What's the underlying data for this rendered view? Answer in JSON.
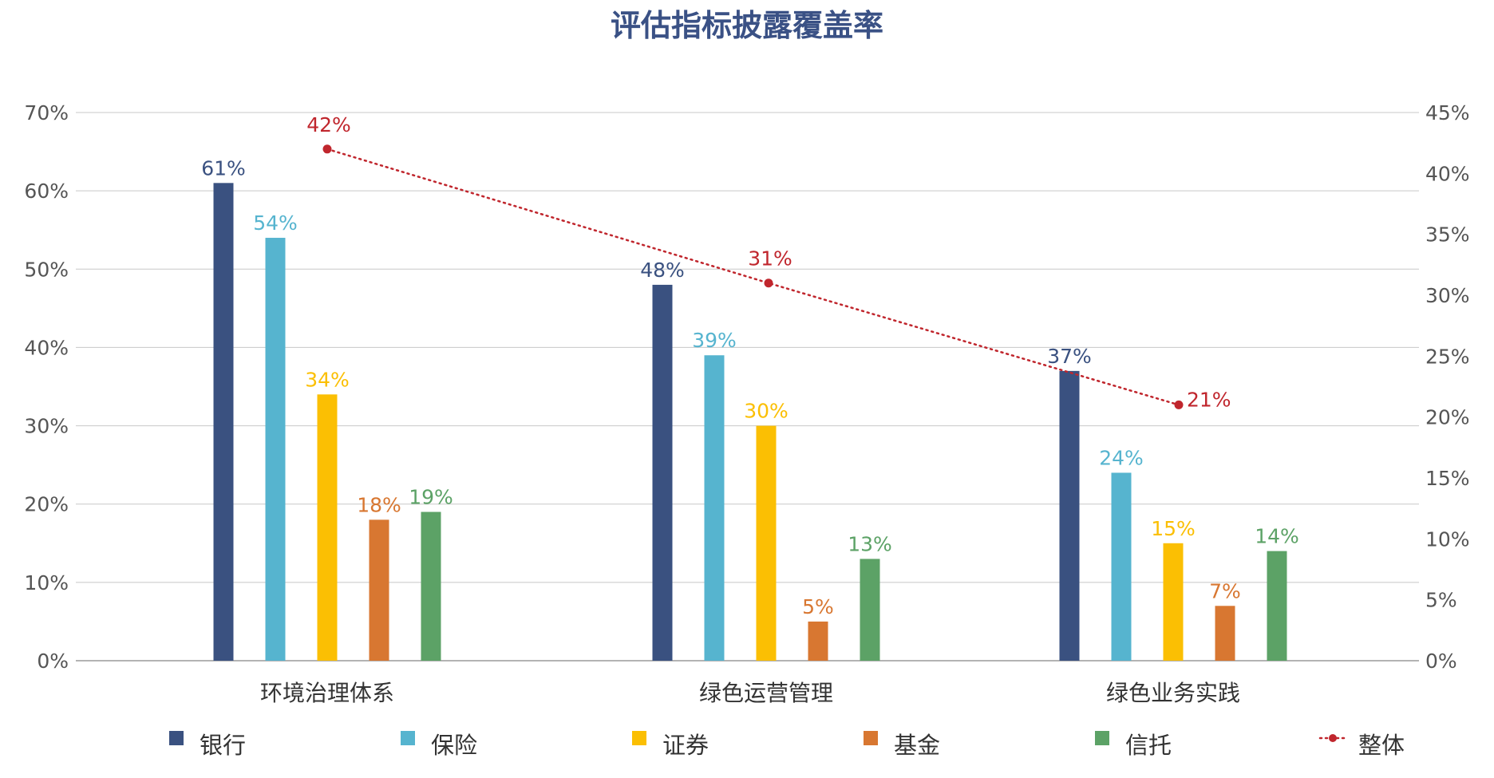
{
  "chart_data": {
    "type": "bar",
    "title": "评估指标披露覆盖率",
    "categories": [
      "环境治理体系",
      "绿色运营管理",
      "绿色业务实践"
    ],
    "y_left": {
      "min": 0,
      "max": 70,
      "step": 10,
      "tick_labels": [
        "0%",
        "10%",
        "20%",
        "30%",
        "40%",
        "50%",
        "60%",
        "70%"
      ]
    },
    "y_right": {
      "min": 0,
      "max": 45,
      "step": 5,
      "tick_labels": [
        "0%",
        "5%",
        "10%",
        "15%",
        "20%",
        "25%",
        "30%",
        "35%",
        "40%",
        "45%"
      ]
    },
    "grid": true,
    "legend_position": "bottom",
    "series": [
      {
        "name": "银行",
        "color": "#3a5180",
        "values": [
          61,
          48,
          37
        ],
        "labels": [
          "61%",
          "48%",
          "37%"
        ]
      },
      {
        "name": "保险",
        "color": "#56b4cf",
        "values": [
          54,
          39,
          24
        ],
        "labels": [
          "54%",
          "39%",
          "24%"
        ]
      },
      {
        "name": "证券",
        "color": "#fbbf03",
        "values": [
          34,
          30,
          15
        ],
        "labels": [
          "34%",
          "30%",
          "15%"
        ]
      },
      {
        "name": "基金",
        "color": "#d87731",
        "values": [
          18,
          5,
          7
        ],
        "labels": [
          "18%",
          "5%",
          "7%"
        ]
      },
      {
        "name": "信托",
        "color": "#5ca266",
        "values": [
          19,
          13,
          14
        ],
        "labels": [
          "19%",
          "13%",
          "14%"
        ]
      }
    ],
    "line_series": {
      "name": "整体",
      "color": "#c0262d",
      "axis": "right",
      "style": "dotted",
      "values": [
        42,
        31,
        21
      ],
      "labels": [
        "42%",
        "31%",
        "21%"
      ]
    }
  }
}
